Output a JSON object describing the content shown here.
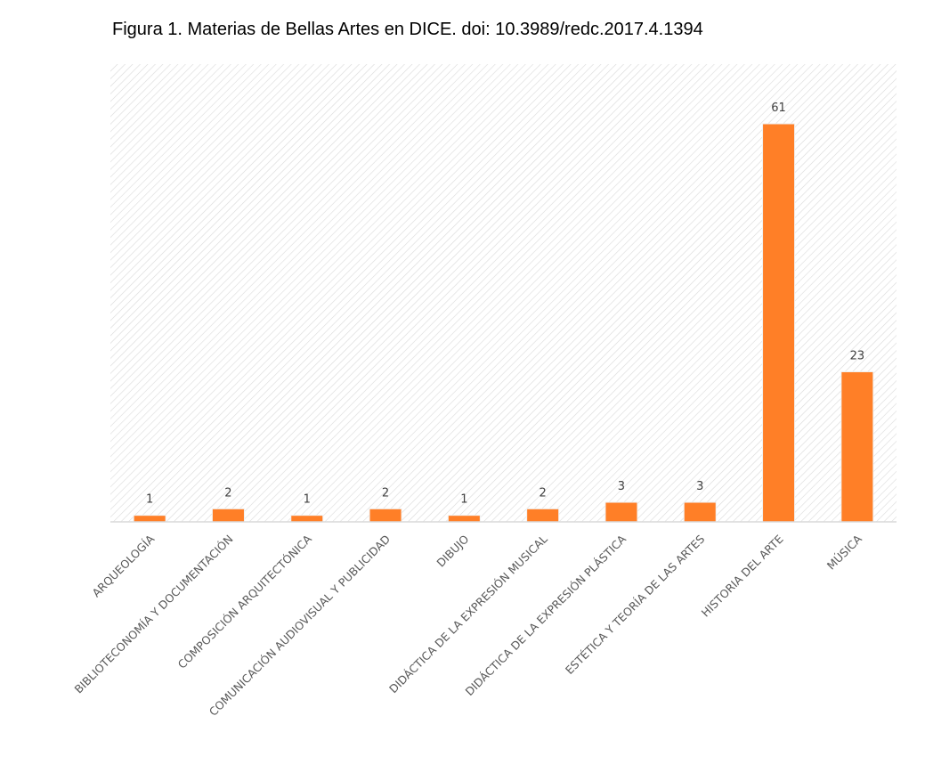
{
  "figure": {
    "caption": "Figura 1. Materias de Bellas Artes en DICE. doi: 10.3989/redc.2017.4.1394"
  },
  "chart_data": {
    "type": "bar",
    "title": "",
    "xlabel": "",
    "ylabel": "",
    "categories": [
      "ARQUEOLOGÍA",
      "BIBLIOTECONOMÍA Y DOCUMENTACIÓN",
      "COMPOSICIÓN ARQUITECTÓNICA",
      "COMUNICACIÓN AUDIOVISUAL Y PUBLICIDAD",
      "DIBUJO",
      "DIDÁCTICA DE LA EXPRESIÓN MUSICAL",
      "DIDÁCTICA DE LA EXPRESIÓN PLÁSTICA",
      "ESTÉTICA Y TEORÍA DE LAS ARTES",
      "HISTORIA DEL ARTE",
      "MÚSICA"
    ],
    "values": [
      1,
      2,
      1,
      2,
      1,
      2,
      3,
      3,
      61,
      23
    ],
    "ylim": [
      0,
      61
    ],
    "data_labels": true,
    "y_axis_visible": false,
    "grid": false,
    "background": "diagonal-hatch",
    "colors": {
      "bar": "#FF7F27",
      "bar_edge": "#F2F2F2",
      "hatch": "#D9D9D9",
      "axis": "#D9D9D9"
    }
  }
}
